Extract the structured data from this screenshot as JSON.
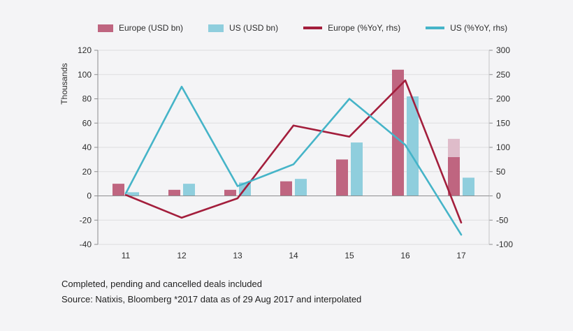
{
  "chart": {
    "legend": [
      {
        "label": "Europe (USD bn)",
        "type": "bar",
        "color": "#bf6580"
      },
      {
        "label": "US (USD bn)",
        "type": "bar",
        "color": "#8fcedd"
      },
      {
        "label": "Europe (%YoY, rhs)",
        "type": "line",
        "color": "#a31e3c"
      },
      {
        "label": "US (%YoY, rhs)",
        "type": "line",
        "color": "#45b4c8"
      }
    ]
  },
  "chart_data": {
    "type": "combo-bar-line",
    "categories": [
      "11",
      "12",
      "13",
      "14",
      "15",
      "16",
      "17"
    ],
    "bar_series": [
      {
        "name": "Europe (USD bn)",
        "key": "europe",
        "axis": "left",
        "color": "#bf6580",
        "values": [
          10,
          5,
          5,
          12,
          30,
          104,
          47
        ],
        "interpolated": {
          "index": 6,
          "solid_value": 32,
          "light_color": "#dfbcca"
        }
      },
      {
        "name": "US (USD bn)",
        "key": "us",
        "axis": "left",
        "color": "#8fcedd",
        "values": [
          3,
          10,
          11,
          14,
          44,
          82,
          15
        ]
      }
    ],
    "line_series": [
      {
        "name": "Europe (%YoY, rhs)",
        "key": "europe-yoy",
        "axis": "right",
        "color": "#a31e3c",
        "values": [
          2,
          -45,
          -5,
          145,
          122,
          238,
          -55
        ]
      },
      {
        "name": "US (%YoY, rhs)",
        "key": "us-yoy",
        "axis": "right",
        "color": "#45b4c8",
        "values": [
          5,
          225,
          20,
          65,
          200,
          105,
          -80
        ]
      }
    ],
    "left_axis": {
      "label": "Thousands",
      "min": -40,
      "max": 120,
      "step": 20,
      "ticks": [
        120,
        100,
        80,
        60,
        40,
        20,
        0,
        -20,
        -40
      ]
    },
    "right_axis": {
      "min": -100,
      "max": 300,
      "step": 50,
      "ticks": [
        300,
        250,
        200,
        150,
        100,
        50,
        0,
        -50,
        -100
      ]
    },
    "grid": true,
    "legend_position": "top"
  },
  "footnotes": [
    "Completed, pending and cancelled deals included",
    "Source: Natixis, Bloomberg *2017 data as of 29 Aug 2017 and interpolated"
  ]
}
